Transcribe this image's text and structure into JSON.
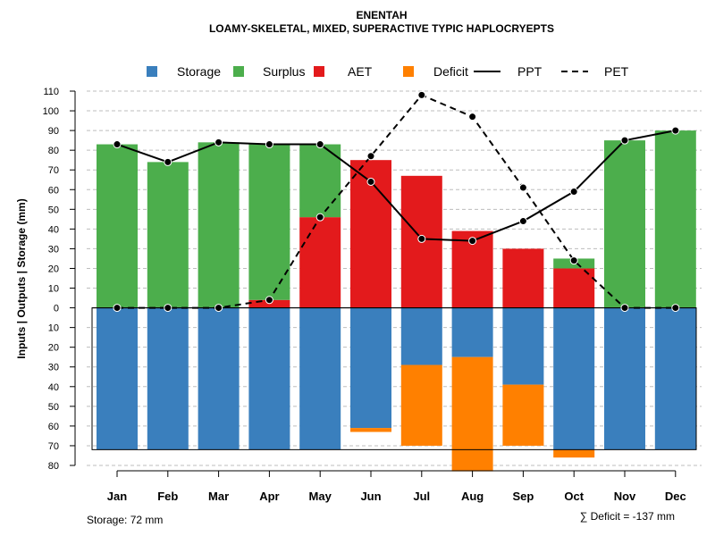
{
  "chart_data": {
    "type": "bar",
    "title": "ENENTAH",
    "subtitle": "LOAMY-SKELETAL, MIXED, SUPERACTIVE TYPIC HAPLOCRYEPTS",
    "ylabel": "Inputs | Outputs | Storage    (mm)",
    "categories": [
      "Jan",
      "Feb",
      "Mar",
      "Apr",
      "May",
      "Jun",
      "Jul",
      "Aug",
      "Sep",
      "Oct",
      "Nov",
      "Dec"
    ],
    "ylim": [
      -80,
      110
    ],
    "yticks": [
      110,
      100,
      90,
      80,
      70,
      60,
      50,
      40,
      30,
      20,
      10,
      0,
      -10,
      -20,
      -30,
      -40,
      -50,
      -60,
      -70,
      -80
    ],
    "ytick_labels": [
      "110",
      "100",
      "90",
      "80",
      "70",
      "60",
      "50",
      "40",
      "30",
      "20",
      "10",
      "0",
      "10",
      "20",
      "30",
      "40",
      "50",
      "60",
      "70",
      "80"
    ],
    "legend": [
      {
        "name": "Storage",
        "kind": "box",
        "color": "#3a7fbd"
      },
      {
        "name": "Surplus",
        "kind": "box",
        "color": "#4cae4c"
      },
      {
        "name": "AET",
        "kind": "box",
        "color": "#e31a1c"
      },
      {
        "name": "Deficit",
        "kind": "box",
        "color": "#ff8000"
      },
      {
        "name": "PPT",
        "kind": "line",
        "color": "#000000"
      },
      {
        "name": "PET",
        "kind": "dash",
        "color": "#000000"
      }
    ],
    "series": [
      {
        "name": "Storage",
        "direction": "down",
        "values": [
          72,
          72,
          72,
          72,
          72,
          61,
          29,
          25,
          39,
          72,
          72,
          72
        ]
      },
      {
        "name": "AET",
        "direction": "up",
        "values": [
          0,
          0,
          0,
          4,
          46,
          75,
          67,
          39,
          30,
          20,
          0,
          0
        ]
      },
      {
        "name": "Surplus",
        "direction": "up",
        "values": [
          83,
          74,
          84,
          79,
          37,
          0,
          0,
          0,
          0,
          5,
          85,
          90
        ]
      },
      {
        "name": "Deficit",
        "direction": "down",
        "values": [
          0,
          0,
          0,
          0,
          0,
          2,
          41,
          58,
          31,
          4,
          0,
          0
        ]
      },
      {
        "name": "PPT",
        "type": "line",
        "values": [
          83,
          74,
          84,
          83,
          83,
          64,
          35,
          34,
          44,
          59,
          85,
          90
        ]
      },
      {
        "name": "PET",
        "type": "dashed-line",
        "values": [
          0,
          0,
          0,
          4,
          46,
          77,
          108,
          97,
          61,
          24,
          0,
          0
        ]
      }
    ],
    "storage_capacity": 72,
    "footer_left": "Storage: 72 mm",
    "footer_right": "∑ Deficit = -137 mm"
  },
  "colors": {
    "storage": "#3a7fbd",
    "surplus": "#4cae4c",
    "aet": "#e31a1c",
    "deficit": "#ff8000",
    "grid": "#bdbdbd"
  }
}
